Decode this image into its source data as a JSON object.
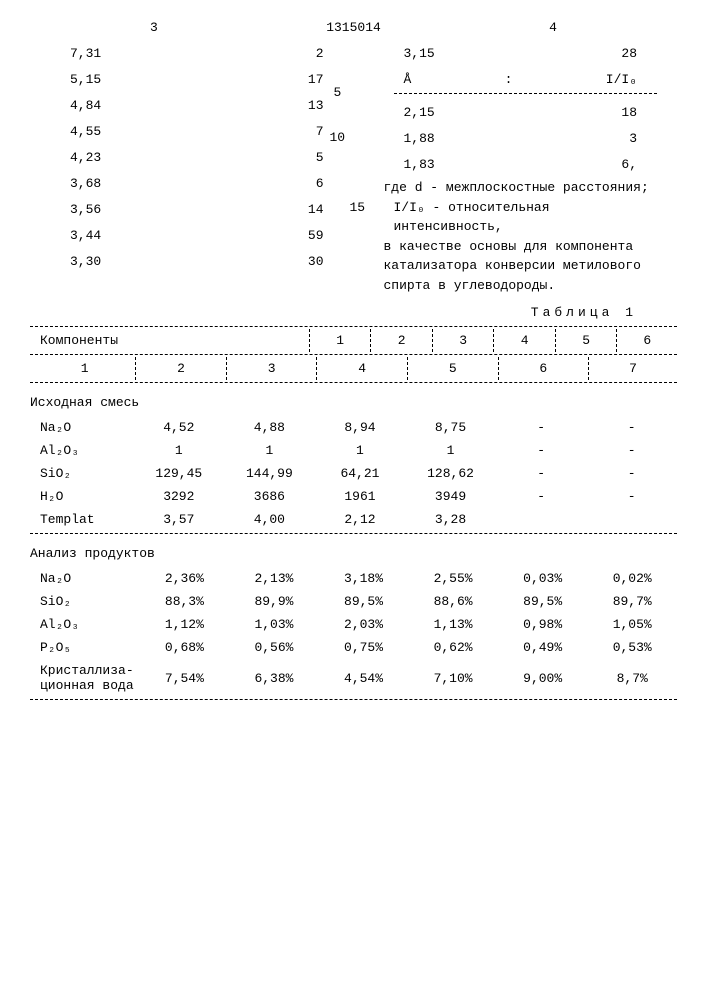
{
  "doc_id": "1315014",
  "page_left_num": "3",
  "page_right_num": "4",
  "line_marker_5": "5",
  "line_marker_10": "10",
  "line_marker_15": "15",
  "left_pairs": [
    {
      "a": "7,31",
      "b": "2"
    },
    {
      "a": "5,15",
      "b": "17"
    },
    {
      "a": "4,84",
      "b": "13"
    },
    {
      "a": "4,55",
      "b": "7"
    },
    {
      "a": "4,23",
      "b": "5"
    },
    {
      "a": "3,68",
      "b": "6"
    },
    {
      "a": "3,56",
      "b": "14"
    },
    {
      "a": "3,44",
      "b": "59"
    },
    {
      "a": "3,30",
      "b": "30"
    }
  ],
  "right_top": {
    "a": "3,15",
    "b": "28"
  },
  "right_header": {
    "a": "Å",
    "sep": ":",
    "b": "I/I₀"
  },
  "right_pairs": [
    {
      "a": "2,15",
      "b": "18"
    },
    {
      "a": "1,88",
      "b": "3"
    },
    {
      "a": "1,83",
      "b": "6,"
    }
  ],
  "note_line1": "где d - межплоскостные расстояния;",
  "note_line2": "I/I₀ - относительная интенсивность,",
  "note_line3": "в качестве основы для компонента катализатора конверсии метилового спирта в углеводороды.",
  "table_title": "Таблица 1",
  "table": {
    "header1": [
      "Компоненты",
      "1",
      "2",
      "3",
      "4",
      "5",
      "6"
    ],
    "header2": [
      "1",
      "2",
      "3",
      "4",
      "5",
      "6",
      "7"
    ],
    "section1_title": "Исходная смесь",
    "section1": [
      {
        "label": "Na₂O",
        "v": [
          "4,52",
          "4,88",
          "8,94",
          "8,75",
          "-",
          "-"
        ]
      },
      {
        "label": "Al₂O₃",
        "v": [
          "1",
          "1",
          "1",
          "1",
          "-",
          "-"
        ]
      },
      {
        "label": "SiO₂",
        "v": [
          "129,45",
          "144,99",
          "64,21",
          "128,62",
          "-",
          "-"
        ]
      },
      {
        "label": "H₂O",
        "v": [
          "3292",
          "3686",
          "1961",
          "3949",
          "-",
          "-"
        ]
      },
      {
        "label": "Templat",
        "v": [
          "3,57",
          "4,00",
          "2,12",
          "3,28",
          "",
          ""
        ]
      }
    ],
    "section2_title": "Анализ продуктов",
    "section2": [
      {
        "label": "Na₂O",
        "v": [
          "2,36%",
          "2,13%",
          "3,18%",
          "2,55%",
          "0,03%",
          "0,02%"
        ]
      },
      {
        "label": "SiO₂",
        "v": [
          "88,3%",
          "89,9%",
          "89,5%",
          "88,6%",
          "89,5%",
          "89,7%"
        ]
      },
      {
        "label": "Al₂O₃",
        "v": [
          "1,12%",
          "1,03%",
          "2,03%",
          "1,13%",
          "0,98%",
          "1,05%"
        ]
      },
      {
        "label": "P₂O₅",
        "v": [
          "0,68%",
          "0,56%",
          "0,75%",
          "0,62%",
          "0,49%",
          "0,53%"
        ]
      },
      {
        "label_line1": "Кристаллиза-",
        "label_line2": "ционная вода",
        "v": [
          "7,54%",
          "6,38%",
          "4,54%",
          "7,10%",
          "9,00%",
          "8,7%"
        ]
      }
    ]
  }
}
